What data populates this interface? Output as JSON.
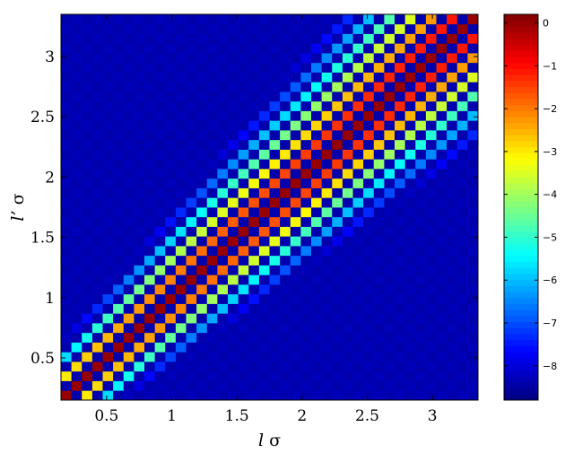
{
  "chart_data": {
    "type": "heatmap",
    "title": "",
    "xlabel": {
      "italic": "l",
      "roman": " σ"
    },
    "ylabel": {
      "italic": "l’",
      "roman": " σ"
    },
    "xlim": [
      0.15,
      3.35
    ],
    "ylim": [
      0.15,
      3.35
    ],
    "grid_n": 40,
    "x_ticks": [
      {
        "value": 0.5,
        "label": "0.5"
      },
      {
        "value": 1,
        "label": "1"
      },
      {
        "value": 1.5,
        "label": "1.5"
      },
      {
        "value": 2,
        "label": "2"
      },
      {
        "value": 2.5,
        "label": "2.5"
      },
      {
        "value": 3,
        "label": "3"
      }
    ],
    "y_ticks": [
      {
        "value": 0.5,
        "label": "0.5"
      },
      {
        "value": 1,
        "label": "1"
      },
      {
        "value": 1.5,
        "label": "1.5"
      },
      {
        "value": 2,
        "label": "2"
      },
      {
        "value": 2.5,
        "label": "2.5"
      },
      {
        "value": 3,
        "label": "3"
      }
    ],
    "colormap": "jet",
    "colorbar": {
      "range": [
        -8.8,
        0.2
      ],
      "ticks": [
        {
          "value": 0,
          "label": "0"
        },
        {
          "value": -1,
          "label": "−1"
        },
        {
          "value": -2,
          "label": "−2"
        },
        {
          "value": -3,
          "label": "−3"
        },
        {
          "value": -4,
          "label": "−4"
        },
        {
          "value": -5,
          "label": "−5"
        },
        {
          "value": -6,
          "label": "−6"
        },
        {
          "value": -7,
          "label": "−7"
        },
        {
          "value": -8,
          "label": "−8"
        }
      ]
    },
    "pattern": {
      "description": "checkerboard: cells with even (i+j) carry values near the diagonal maximum; odd cells are near the minimum",
      "diagonal_value": 0,
      "far_even_value": -8.3,
      "odd_cell_value": -8.4,
      "decay_per_cell": 0.55
    }
  }
}
